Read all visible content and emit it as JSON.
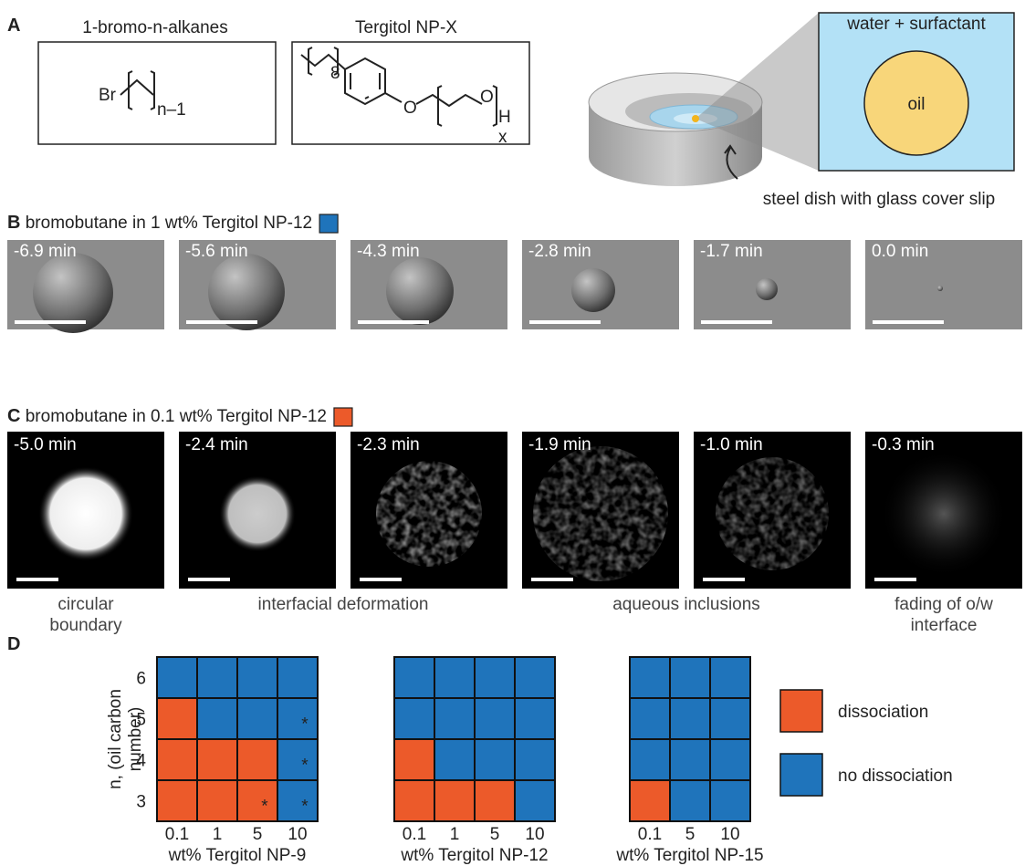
{
  "panel_a": {
    "label": "A",
    "alkane_title": "1-bromo-n-alkanes",
    "alkane_br": "Br",
    "alkane_sub": "n–1",
    "surf_title": "Tergitol NP-X",
    "surf_sub8": "8",
    "surf_o1": "O",
    "surf_o2": "O",
    "surf_h": "H",
    "surf_x": "x",
    "zoom_label": "water + surfactant",
    "oil_label": "oil",
    "dish_label": "steel dish with glass cover slip"
  },
  "panel_b": {
    "label": "B",
    "title": "bromobutane in 1 wt% Tergitol NP-12",
    "color": "#1f74bb",
    "frames": [
      "-6.9 min",
      "-5.6 min",
      "-4.3 min",
      "-2.8 min",
      "-1.7 min",
      "0.0 min"
    ]
  },
  "panel_c": {
    "label": "C",
    "title": "bromobutane in 0.1 wt% Tergitol NP-12",
    "color": "#ec5a2a",
    "frames": [
      "-5.0 min",
      "-2.4 min",
      "-2.3 min",
      "-1.9 min",
      "-1.0 min",
      "-0.3 min"
    ],
    "captions": [
      [
        "circular",
        "boundary"
      ],
      [
        "interfacial deformation"
      ],
      [
        "aqueous inclusions"
      ],
      [
        "fading of o/w",
        "interface"
      ]
    ]
  },
  "panel_d": {
    "label": "D",
    "ylabel": [
      "n, (oil carbon",
      "number)"
    ],
    "yticks": [
      6,
      5,
      4,
      3
    ],
    "legend": [
      {
        "label": "dissociation",
        "color": "#ec5a2a"
      },
      {
        "label": "no dissociation",
        "color": "#1f74bb"
      }
    ],
    "grids": [
      {
        "xlabel": "wt% Tergitol NP-9",
        "xticks": [
          0.1,
          1,
          5,
          10
        ],
        "states": [
          [
            1,
            1,
            1,
            1
          ],
          [
            0,
            1,
            1,
            1
          ],
          [
            0,
            0,
            0,
            1
          ],
          [
            0,
            0,
            0,
            1
          ]
        ],
        "notes": [
          [
            null,
            null,
            null,
            null
          ],
          [
            null,
            null,
            null,
            "*"
          ],
          [
            null,
            null,
            null,
            "*"
          ],
          [
            null,
            null,
            "*",
            "*"
          ]
        ]
      },
      {
        "xlabel": "wt% Tergitol NP-12",
        "xticks": [
          0.1,
          1,
          5,
          10
        ],
        "states": [
          [
            1,
            1,
            1,
            1
          ],
          [
            1,
            1,
            1,
            1
          ],
          [
            0,
            1,
            1,
            1
          ],
          [
            0,
            0,
            0,
            1
          ]
        ],
        "notes": [
          [
            null,
            null,
            null,
            null
          ],
          [
            null,
            null,
            null,
            null
          ],
          [
            null,
            null,
            null,
            null
          ],
          [
            null,
            null,
            null,
            null
          ]
        ]
      },
      {
        "xlabel": "wt% Tergitol NP-15",
        "xticks": [
          0.1,
          5,
          10
        ],
        "states": [
          [
            1,
            1,
            1
          ],
          [
            1,
            1,
            1
          ],
          [
            1,
            1,
            1
          ],
          [
            0,
            1,
            1
          ]
        ],
        "notes": [
          [
            null,
            null,
            null
          ],
          [
            null,
            null,
            null
          ],
          [
            null,
            null,
            null
          ],
          [
            null,
            null,
            null
          ]
        ]
      }
    ]
  }
}
